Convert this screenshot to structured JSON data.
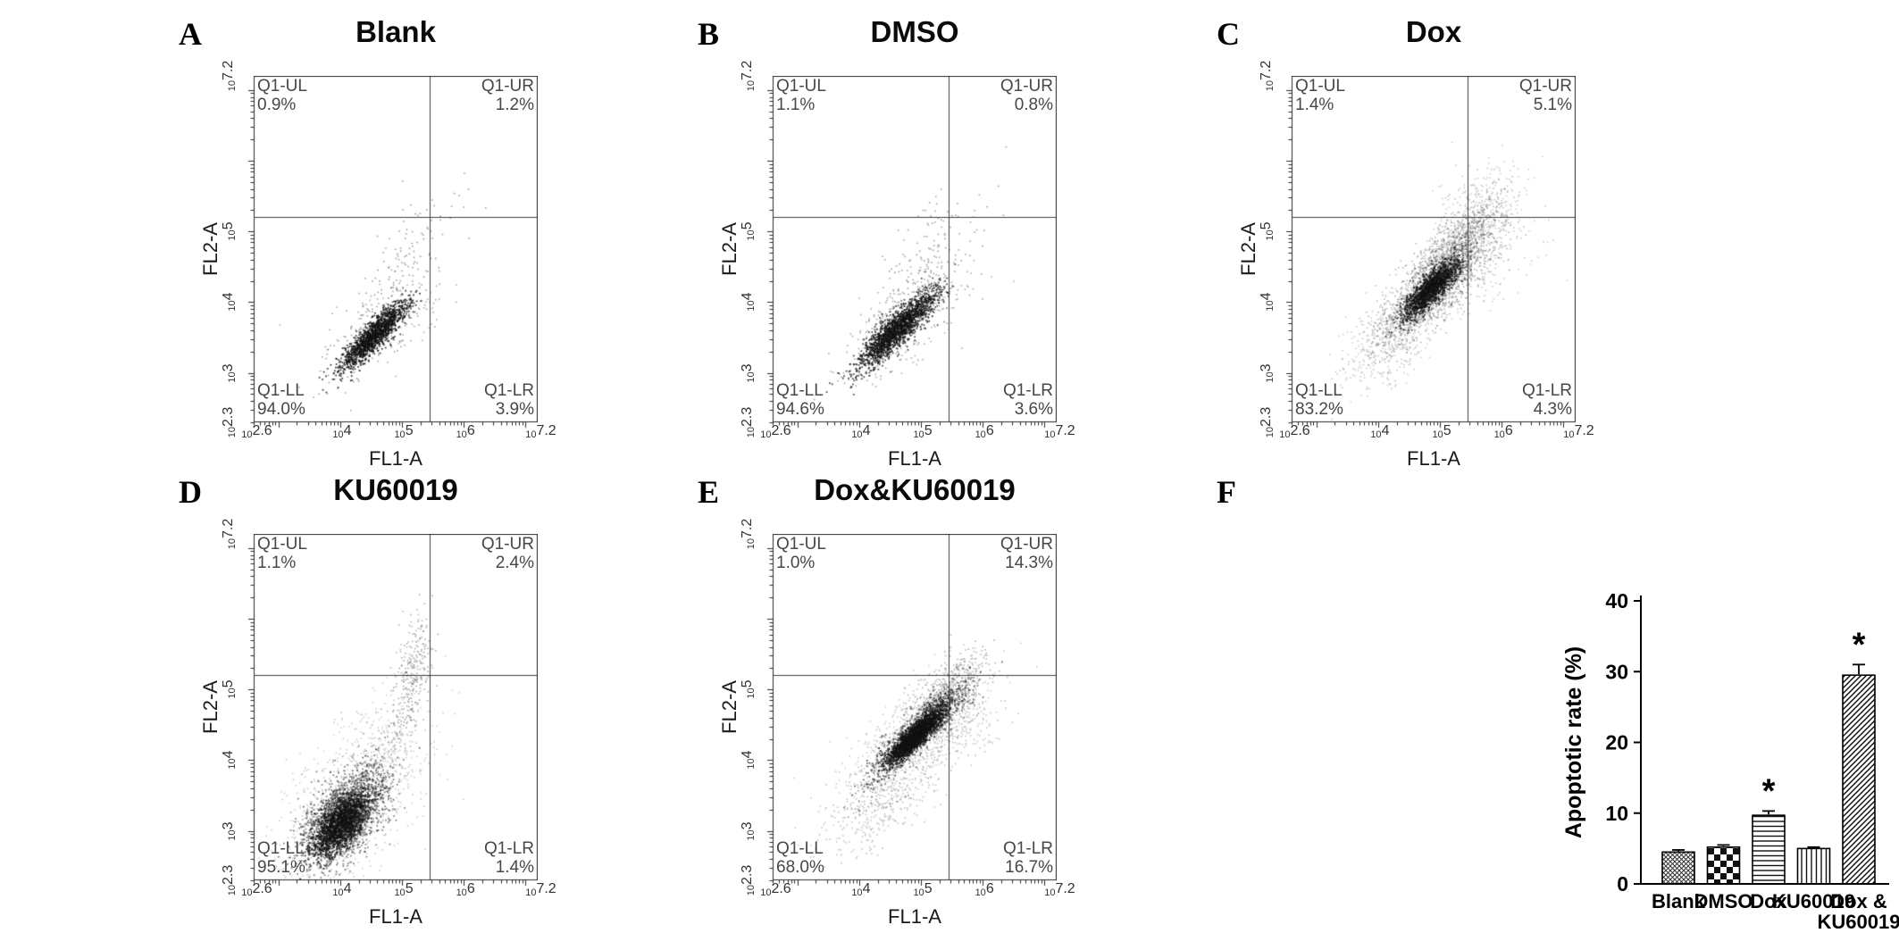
{
  "figure": {
    "background": "#ffffff",
    "log_base_label": "10",
    "panels": [
      {
        "letter": "A",
        "title": "Blank",
        "xlabel": "FL1-A",
        "ylabel": "FL2-A",
        "quads": {
          "ul": {
            "label": "Q1-UL",
            "value": "0.9%"
          },
          "ur": {
            "label": "Q1-UR",
            "value": "1.2%"
          },
          "ll": {
            "label": "Q1-LL",
            "value": "94.0%"
          },
          "lr": {
            "label": "Q1-LR",
            "value": "3.9%"
          }
        }
      },
      {
        "letter": "B",
        "title": "DMSO",
        "xlabel": "FL1-A",
        "ylabel": "FL2-A",
        "quads": {
          "ul": {
            "label": "Q1-UL",
            "value": "1.1%"
          },
          "ur": {
            "label": "Q1-UR",
            "value": "0.8%"
          },
          "ll": {
            "label": "Q1-LL",
            "value": "94.6%"
          },
          "lr": {
            "label": "Q1-LR",
            "value": "3.6%"
          }
        }
      },
      {
        "letter": "C",
        "title": "Dox",
        "xlabel": "FL1-A",
        "ylabel": "FL2-A",
        "quads": {
          "ul": {
            "label": "Q1-UL",
            "value": "1.4%"
          },
          "ur": {
            "label": "Q1-UR",
            "value": "5.1%"
          },
          "ll": {
            "label": "Q1-LL",
            "value": "83.2%"
          },
          "lr": {
            "label": "Q1-LR",
            "value": "4.3%"
          }
        }
      },
      {
        "letter": "D",
        "title": "KU60019",
        "xlabel": "FL1-A",
        "ylabel": "FL2-A",
        "quads": {
          "ul": {
            "label": "Q1-UL",
            "value": "1.1%"
          },
          "ur": {
            "label": "Q1-UR",
            "value": "2.4%"
          },
          "ll": {
            "label": "Q1-LL",
            "value": "95.1%"
          },
          "lr": {
            "label": "Q1-LR",
            "value": "1.4%"
          }
        }
      },
      {
        "letter": "E",
        "title": "Dox&KU60019",
        "xlabel": "FL1-A",
        "ylabel": "FL2-A",
        "quads": {
          "ul": {
            "label": "Q1-UL",
            "value": "1.0%"
          },
          "ur": {
            "label": "Q1-UR",
            "value": "14.3%"
          },
          "ll": {
            "label": "Q1-LL",
            "value": "68.0%"
          },
          "lr": {
            "label": "Q1-LR",
            "value": "16.7%"
          }
        }
      },
      {
        "letter": "F"
      }
    ]
  },
  "chart_data": [
    {
      "type": "scatter",
      "panel": "A",
      "title": "Blank",
      "xlabel": "FL1-A",
      "ylabel": "FL2-A",
      "xlim_log10": [
        2.6,
        7.2
      ],
      "ylim_log10": [
        2.3,
        7.2
      ],
      "x_ticks": [
        "2.6",
        "4",
        "5",
        "6",
        "7.2"
      ],
      "y_ticks": [
        "2.3",
        "3",
        "4",
        "5",
        "7.2"
      ],
      "quadrant_lines_log10": {
        "x": 5.45,
        "y": 5.2
      },
      "quadrant_percentages": {
        "UL": 0.9,
        "UR": 1.2,
        "LL": 94.0,
        "LR": 3.9
      },
      "clusters": [
        {
          "n": 1500,
          "cx": 4.55,
          "cy": 3.55,
          "sa": 0.36,
          "sp": 0.085,
          "ang": 41,
          "alpha": 0.85,
          "size": 1.7
        },
        {
          "n": 260,
          "cx": 4.55,
          "cy": 3.6,
          "sa": 0.55,
          "sp": 0.22,
          "ang": 41,
          "alpha": 0.38,
          "size": 1.6
        },
        {
          "n": 70,
          "cx": 4.95,
          "cy": 4.45,
          "sa": 0.4,
          "sp": 0.18,
          "ang": 50,
          "alpha": 0.42,
          "size": 1.6
        },
        {
          "n": 30,
          "cx": 5.35,
          "cy": 5.1,
          "sa": 0.35,
          "sp": 0.25,
          "ang": 45,
          "alpha": 0.4,
          "size": 1.6
        },
        {
          "n": 40,
          "cx": 5.05,
          "cy": 3.9,
          "sa": 0.55,
          "sp": 0.28,
          "ang": 10,
          "alpha": 0.32,
          "size": 1.6
        }
      ]
    },
    {
      "type": "scatter",
      "panel": "B",
      "title": "DMSO",
      "xlabel": "FL1-A",
      "ylabel": "FL2-A",
      "xlim_log10": [
        2.6,
        7.2
      ],
      "ylim_log10": [
        2.3,
        7.2
      ],
      "x_ticks": [
        "2.6",
        "4",
        "5",
        "6",
        "7.2"
      ],
      "y_ticks": [
        "2.3",
        "3",
        "4",
        "5",
        "7.2"
      ],
      "quadrant_lines_log10": {
        "x": 5.45,
        "y": 5.2
      },
      "quadrant_percentages": {
        "UL": 1.1,
        "UR": 0.8,
        "LL": 94.6,
        "LR": 3.6
      },
      "clusters": [
        {
          "n": 1900,
          "cx": 4.6,
          "cy": 3.62,
          "sa": 0.4,
          "sp": 0.1,
          "ang": 41,
          "alpha": 0.8,
          "size": 1.7
        },
        {
          "n": 350,
          "cx": 4.6,
          "cy": 3.65,
          "sa": 0.6,
          "sp": 0.24,
          "ang": 41,
          "alpha": 0.36,
          "size": 1.6
        },
        {
          "n": 90,
          "cx": 5.0,
          "cy": 4.5,
          "sa": 0.45,
          "sp": 0.2,
          "ang": 50,
          "alpha": 0.4,
          "size": 1.6
        },
        {
          "n": 40,
          "cx": 5.5,
          "cy": 5.1,
          "sa": 0.45,
          "sp": 0.3,
          "ang": 45,
          "alpha": 0.38,
          "size": 1.6
        },
        {
          "n": 50,
          "cx": 5.1,
          "cy": 3.9,
          "sa": 0.55,
          "sp": 0.3,
          "ang": 10,
          "alpha": 0.32,
          "size": 1.6
        }
      ]
    },
    {
      "type": "scatter",
      "panel": "C",
      "title": "Dox",
      "xlabel": "FL1-A",
      "ylabel": "FL2-A",
      "xlim_log10": [
        2.6,
        7.2
      ],
      "ylim_log10": [
        2.3,
        7.2
      ],
      "x_ticks": [
        "2.6",
        "4",
        "5",
        "6",
        "7.2"
      ],
      "y_ticks": [
        "2.3",
        "3",
        "4",
        "5",
        "7.2"
      ],
      "quadrant_lines_log10": {
        "x": 5.45,
        "y": 5.2
      },
      "quadrant_percentages": {
        "UL": 1.4,
        "UR": 5.1,
        "LL": 83.2,
        "LR": 4.3
      },
      "clusters": [
        {
          "n": 1400,
          "cx": 4.85,
          "cy": 4.2,
          "sa": 0.3,
          "sp": 0.09,
          "ang": 42,
          "alpha": 0.75,
          "size": 1.8
        },
        {
          "n": 1800,
          "cx": 4.9,
          "cy": 4.25,
          "sa": 0.5,
          "sp": 0.2,
          "ang": 42,
          "alpha": 0.3,
          "size": 1.6
        },
        {
          "n": 700,
          "cx": 5.35,
          "cy": 4.85,
          "sa": 0.4,
          "sp": 0.22,
          "ang": 45,
          "alpha": 0.28,
          "size": 1.6
        },
        {
          "n": 350,
          "cx": 5.7,
          "cy": 5.3,
          "sa": 0.4,
          "sp": 0.3,
          "ang": 45,
          "alpha": 0.22,
          "size": 1.6
        },
        {
          "n": 500,
          "cx": 4.2,
          "cy": 3.5,
          "sa": 0.5,
          "sp": 0.25,
          "ang": 40,
          "alpha": 0.22,
          "size": 1.6
        },
        {
          "n": 150,
          "cx": 5.6,
          "cy": 4.5,
          "sa": 0.45,
          "sp": 0.3,
          "ang": 20,
          "alpha": 0.22,
          "size": 1.6
        }
      ]
    },
    {
      "type": "scatter",
      "panel": "D",
      "title": "KU60019",
      "xlabel": "FL1-A",
      "ylabel": "FL2-A",
      "xlim_log10": [
        2.6,
        7.2
      ],
      "ylim_log10": [
        2.3,
        7.2
      ],
      "x_ticks": [
        "2.6",
        "4",
        "5",
        "6",
        "7.2"
      ],
      "y_ticks": [
        "2.3",
        "3",
        "4",
        "5",
        "7.2"
      ],
      "quadrant_lines_log10": {
        "x": 5.45,
        "y": 5.2
      },
      "quadrant_percentages": {
        "UL": 1.1,
        "UR": 2.4,
        "LL": 95.1,
        "LR": 1.4
      },
      "clusters": [
        {
          "n": 2200,
          "cx": 4.05,
          "cy": 3.2,
          "sa": 0.42,
          "sp": 0.22,
          "ang": 45,
          "alpha": 0.55,
          "size": 1.7
        },
        {
          "n": 1300,
          "cx": 4.0,
          "cy": 3.1,
          "sa": 0.28,
          "sp": 0.13,
          "ang": 45,
          "alpha": 0.8,
          "size": 1.8
        },
        {
          "n": 900,
          "cx": 4.15,
          "cy": 3.35,
          "sa": 0.7,
          "sp": 0.4,
          "ang": 45,
          "alpha": 0.22,
          "size": 1.6
        },
        {
          "n": 260,
          "cx": 5.1,
          "cy": 4.9,
          "sa": 0.5,
          "sp": 0.13,
          "ang": 75,
          "alpha": 0.35,
          "size": 1.6
        },
        {
          "n": 250,
          "cx": 4.6,
          "cy": 4.1,
          "sa": 0.6,
          "sp": 0.35,
          "ang": 45,
          "alpha": 0.2,
          "size": 1.6
        },
        {
          "n": 60,
          "cx": 5.15,
          "cy": 5.6,
          "sa": 0.3,
          "sp": 0.15,
          "ang": 80,
          "alpha": 0.3,
          "size": 1.6
        }
      ]
    },
    {
      "type": "scatter",
      "panel": "E",
      "title": "Dox&KU60019",
      "xlabel": "FL1-A",
      "ylabel": "FL2-A",
      "xlim_log10": [
        2.6,
        7.2
      ],
      "ylim_log10": [
        2.3,
        7.2
      ],
      "x_ticks": [
        "2.6",
        "4",
        "5",
        "6",
        "7.2"
      ],
      "y_ticks": [
        "2.3",
        "3",
        "4",
        "5",
        "7.2"
      ],
      "quadrant_lines_log10": {
        "x": 5.45,
        "y": 5.2
      },
      "quadrant_percentages": {
        "UL": 1.0,
        "UR": 14.3,
        "LL": 68.0,
        "LR": 16.7
      },
      "clusters": [
        {
          "n": 1800,
          "cx": 4.95,
          "cy": 4.4,
          "sa": 0.42,
          "sp": 0.1,
          "ang": 40,
          "alpha": 0.65,
          "size": 1.7
        },
        {
          "n": 1100,
          "cx": 4.88,
          "cy": 4.33,
          "sa": 0.26,
          "sp": 0.065,
          "ang": 40,
          "alpha": 0.9,
          "size": 1.8
        },
        {
          "n": 800,
          "cx": 4.95,
          "cy": 4.4,
          "sa": 0.65,
          "sp": 0.28,
          "ang": 40,
          "alpha": 0.22,
          "size": 1.6
        },
        {
          "n": 500,
          "cx": 5.45,
          "cy": 4.95,
          "sa": 0.38,
          "sp": 0.18,
          "ang": 42,
          "alpha": 0.32,
          "size": 1.6
        },
        {
          "n": 450,
          "cx": 4.35,
          "cy": 3.5,
          "sa": 0.5,
          "sp": 0.28,
          "ang": 40,
          "alpha": 0.26,
          "size": 1.6
        },
        {
          "n": 220,
          "cx": 5.5,
          "cy": 4.5,
          "sa": 0.4,
          "sp": 0.28,
          "ang": 20,
          "alpha": 0.26,
          "size": 1.6
        }
      ]
    },
    {
      "type": "bar",
      "panel": "F",
      "title": "",
      "ylabel": "Apoptotic rate (%)",
      "ylim": [
        0,
        40
      ],
      "yticks": [
        0,
        10,
        20,
        30,
        40
      ],
      "categories": [
        "Blank",
        "DMSO",
        "Dox",
        "KU60019",
        "Dox &\nKU60019"
      ],
      "values": [
        4.5,
        5.2,
        9.7,
        5.0,
        29.5
      ],
      "errors": [
        0.3,
        0.3,
        0.6,
        0.2,
        1.5
      ],
      "significant": [
        false,
        false,
        true,
        false,
        true
      ],
      "sig_marker": "*",
      "patterns": [
        "crosshatch",
        "checkerboard",
        "horizontal-lines",
        "vertical-lines",
        "diagonal-lines"
      ],
      "bar_color": "#ffffff",
      "edge_color": "#000000"
    }
  ]
}
